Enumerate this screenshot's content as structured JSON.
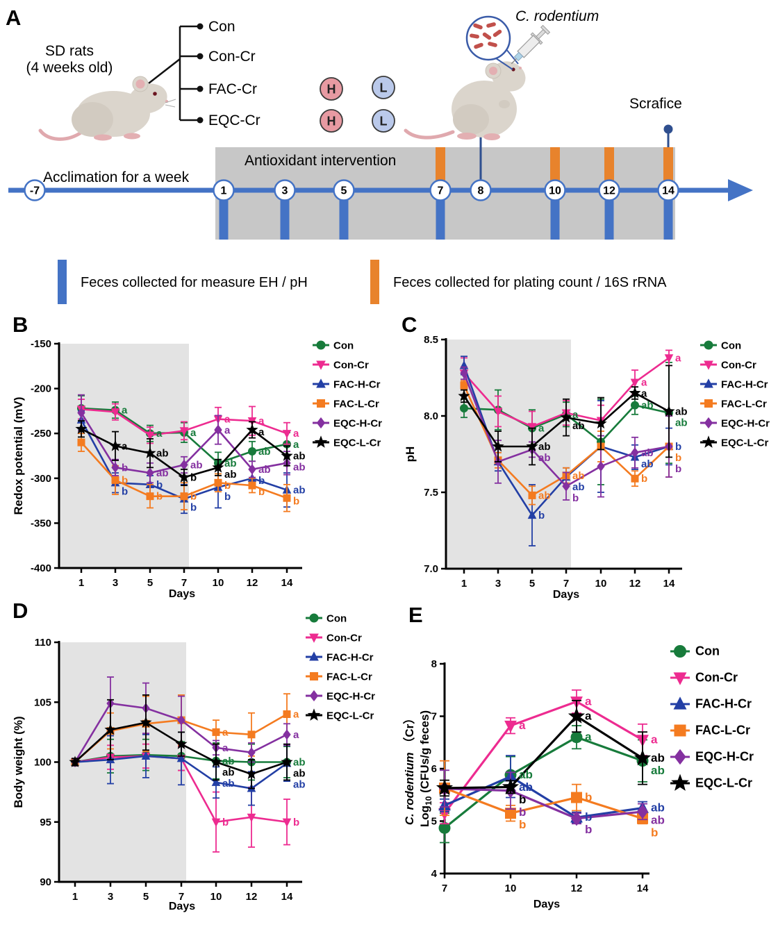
{
  "panelA": {
    "label": "A",
    "subject_line1": "SD rats",
    "subject_line2": "(4 weeks old)",
    "groups": [
      "Con",
      "Con-Cr",
      "FAC-Cr",
      "EQC-Cr"
    ],
    "dose_high": {
      "label": "H",
      "color": "#E79AA2"
    },
    "dose_low": {
      "label": "L",
      "color": "#BAC9EA"
    },
    "c_rodentium": "C. rodentium",
    "sacrifice": "Scrafice",
    "acclimation": "Acclimation for a week",
    "intervention": "Antioxidant intervention",
    "timeline_days": [
      "-7",
      "1",
      "3",
      "5",
      "7",
      "8",
      "10",
      "12",
      "14"
    ],
    "timeline_color": "#4473C5",
    "pin_color": "#2F4F8F",
    "orange_color": "#E8832C",
    "gray_box_color": "#C7C7C7",
    "legend": [
      {
        "color": "#4473C5",
        "text": "Feces collected for measure EH / pH"
      },
      {
        "color": "#E8832C",
        "text": "Feces collected for plating count / 16S rRNA"
      }
    ]
  },
  "chart_data": [
    {
      "id": "B",
      "panel_label": "B",
      "type": "line",
      "x": [
        1,
        3,
        5,
        7,
        10,
        12,
        14
      ],
      "xlabel": "Days",
      "ylabel": "Redox potential (mV)",
      "ylim": [
        -400,
        -150
      ],
      "yticks": [
        -150,
        -200,
        -250,
        -300,
        -350,
        -400
      ],
      "ydec": false,
      "shaded": true,
      "shade_color": "#E3E3E3",
      "legend_position": "right",
      "series": [
        {
          "name": "Con",
          "color": "#177B3B",
          "marker": "circle",
          "values": [
            -222,
            -224,
            -250,
            -249,
            -283,
            -270,
            -262
          ],
          "errors": [
            14,
            9,
            9,
            11,
            12,
            11,
            13
          ],
          "letters": [
            "",
            "a",
            "a",
            "a",
            "ab",
            "ab",
            "a"
          ]
        },
        {
          "name": "Con-Cr",
          "color": "#ED2B90",
          "marker": "triangle-down",
          "values": [
            -223,
            -226,
            -252,
            -247,
            -234,
            -236,
            -250
          ],
          "errors": [
            11,
            9,
            9,
            10,
            13,
            16,
            12
          ],
          "letters": [
            "",
            "",
            "",
            "",
            "a",
            "a",
            "a"
          ]
        },
        {
          "name": "FAC-H-Cr",
          "color": "#233FA5",
          "marker": "triangle-up",
          "values": [
            -235,
            -305,
            -307,
            -323,
            -310,
            -300,
            -313
          ],
          "errors": [
            10,
            11,
            10,
            16,
            23,
            10,
            19
          ],
          "letters": [
            "",
            "b",
            "b",
            "b",
            "b",
            "b",
            "ab"
          ]
        },
        {
          "name": "FAC-L-Cr",
          "color": "#F47B20",
          "marker": "square",
          "values": [
            -260,
            -302,
            -320,
            -320,
            -305,
            -308,
            -322
          ],
          "errors": [
            10,
            16,
            13,
            15,
            10,
            8,
            15
          ],
          "letters": [
            "",
            "b",
            "b",
            "b",
            "b",
            "b",
            "b"
          ]
        },
        {
          "name": "EQC-H-Cr",
          "color": "#8430A0",
          "marker": "diamond",
          "values": [
            -227,
            -288,
            -294,
            -285,
            -246,
            -290,
            -283
          ],
          "errors": [
            20,
            9,
            11,
            9,
            16,
            9,
            13
          ],
          "letters": [
            "",
            "b",
            "ab",
            "ab",
            "a",
            "ab",
            "ab"
          ]
        },
        {
          "name": "EQC-L-Cr",
          "color": "#000000",
          "marker": "star",
          "values": [
            -245,
            -264,
            -272,
            -299,
            -288,
            -246,
            -275
          ],
          "errors": [
            9,
            16,
            16,
            9,
            9,
            9,
            11
          ],
          "letters": [
            "",
            "a",
            "ab",
            "b",
            "ab",
            "a",
            "ab"
          ]
        }
      ]
    },
    {
      "id": "C",
      "panel_label": "C",
      "type": "line",
      "x": [
        1,
        3,
        5,
        7,
        10,
        12,
        14
      ],
      "xlabel": "Days",
      "ylabel": "pH",
      "ylim": [
        7.0,
        8.5
      ],
      "yticks": [
        8.5,
        8.0,
        7.5,
        7.0
      ],
      "ydec": true,
      "shaded": true,
      "shade_color": "#E3E3E3",
      "legend_position": "right",
      "series": [
        {
          "name": "Con",
          "color": "#177B3B",
          "marker": "circle",
          "values": [
            8.05,
            8.04,
            7.92,
            8.01,
            7.83,
            8.07,
            8.02
          ],
          "errors": [
            0.06,
            0.13,
            0.12,
            0.08,
            0.28,
            0.06,
            0.33
          ],
          "letters": [
            "",
            "",
            "a",
            "a",
            "",
            "ab",
            "ab"
          ]
        },
        {
          "name": "Con-Cr",
          "color": "#ED2B90",
          "marker": "triangle-down",
          "values": [
            8.28,
            8.03,
            7.93,
            8.02,
            7.97,
            8.22,
            8.38
          ],
          "errors": [
            0.1,
            0.1,
            0.1,
            0.08,
            0.1,
            0.08,
            0.05
          ],
          "letters": [
            "",
            "",
            "",
            "",
            "",
            "a",
            "a"
          ]
        },
        {
          "name": "FAC-H-Cr",
          "color": "#233FA5",
          "marker": "triangle-up",
          "values": [
            8.33,
            7.7,
            7.35,
            7.6,
            7.8,
            7.73,
            7.8
          ],
          "errors": [
            0.06,
            0.06,
            0.2,
            0.06,
            0.3,
            0.08,
            0.12
          ],
          "letters": [
            "",
            "",
            "b",
            "ab",
            "",
            "ab",
            "b"
          ]
        },
        {
          "name": "FAC-L-Cr",
          "color": "#F47B20",
          "marker": "square",
          "values": [
            8.2,
            7.71,
            7.48,
            7.61,
            7.8,
            7.59,
            7.8
          ],
          "errors": [
            0.03,
            0.05,
            0.06,
            0.05,
            0.1,
            0.05,
            0.2
          ],
          "letters": [
            "",
            "",
            "ab",
            "ab",
            "",
            "b",
            "b"
          ]
        },
        {
          "name": "EQC-H-Cr",
          "color": "#8430A0",
          "marker": "diamond",
          "values": [
            8.28,
            7.7,
            7.78,
            7.54,
            7.67,
            7.76,
            7.8
          ],
          "errors": [
            0.04,
            0.14,
            0.05,
            0.09,
            0.2,
            0.1,
            0.2
          ],
          "letters": [
            "",
            "",
            "ab",
            "b",
            "",
            "ab",
            "b"
          ]
        },
        {
          "name": "EQC-L-Cr",
          "color": "#000000",
          "marker": "star",
          "values": [
            8.13,
            7.8,
            7.8,
            7.99,
            7.95,
            8.15,
            8.03
          ],
          "errors": [
            0.04,
            0.1,
            0.12,
            0.12,
            0.17,
            0.04,
            0.3
          ],
          "letters": [
            "",
            "",
            "ab",
            "ab",
            "",
            "a",
            "ab"
          ]
        }
      ]
    },
    {
      "id": "D",
      "panel_label": "D",
      "type": "line",
      "x": [
        1,
        3,
        5,
        7,
        10,
        12,
        14
      ],
      "xlabel": "Days",
      "ylabel": "Body weight (%)",
      "ylim": [
        90,
        110
      ],
      "yticks": [
        110,
        105,
        100,
        95,
        90
      ],
      "ydec": false,
      "shaded": true,
      "shade_color": "#E3E3E3",
      "legend_position": "right",
      "series": [
        {
          "name": "Con",
          "color": "#177B3B",
          "marker": "circle",
          "values": [
            100,
            100.5,
            100.6,
            100.5,
            100.1,
            100.0,
            100.0
          ],
          "errors": [
            0.3,
            1.4,
            1.3,
            1.2,
            1.5,
            1.5,
            1.3
          ],
          "letters": [
            "",
            "",
            "",
            "",
            "ab",
            "",
            "ab"
          ]
        },
        {
          "name": "Con-Cr",
          "color": "#ED2B90",
          "marker": "triangle-down",
          "values": [
            100,
            100.4,
            100.5,
            100.3,
            95.0,
            95.4,
            95.0
          ],
          "errors": [
            0.3,
            1.0,
            1.0,
            1.0,
            2.5,
            2.5,
            1.9
          ],
          "letters": [
            "",
            "",
            "",
            "",
            "b",
            "",
            "b"
          ]
        },
        {
          "name": "FAC-H-Cr",
          "color": "#233FA5",
          "marker": "triangle-up",
          "values": [
            100,
            100.2,
            100.5,
            100.3,
            98.3,
            97.8,
            99.9
          ],
          "errors": [
            0.3,
            2.0,
            1.8,
            2.2,
            1.3,
            1.4,
            1.5
          ],
          "letters": [
            "",
            "",
            "",
            "",
            "ab",
            "",
            "ab"
          ]
        },
        {
          "name": "FAC-L-Cr",
          "color": "#F47B20",
          "marker": "square",
          "values": [
            100,
            102.6,
            103.2,
            103.5,
            102.5,
            102.3,
            104.0
          ],
          "errors": [
            0.3,
            1.5,
            2.3,
            2.1,
            1.0,
            1.8,
            1.7
          ],
          "letters": [
            "",
            "",
            "",
            "",
            "a",
            "",
            "a"
          ]
        },
        {
          "name": "EQC-H-Cr",
          "color": "#8430A0",
          "marker": "diamond",
          "values": [
            100,
            104.9,
            104.5,
            103.5,
            101.2,
            100.8,
            102.3
          ],
          "errors": [
            0.3,
            2.2,
            2.1,
            2.0,
            0.6,
            0.8,
            0.9
          ],
          "letters": [
            "",
            "",
            "",
            "",
            "a",
            "",
            "a"
          ]
        },
        {
          "name": "EQC-L-Cr",
          "color": "#000000",
          "marker": "star",
          "values": [
            100,
            102.7,
            103.3,
            101.5,
            100.0,
            99.0,
            100.0
          ],
          "errors": [
            0.3,
            2.5,
            2.3,
            1.0,
            1.5,
            1.2,
            1.5
          ],
          "letters": [
            "",
            "",
            "",
            "",
            "ab",
            "",
            "ab"
          ]
        }
      ]
    },
    {
      "id": "E",
      "panel_label": "E",
      "type": "line",
      "x": [
        7,
        10,
        12,
        14
      ],
      "xlabel": "Days",
      "ylabel_italic": "C. rodentium",
      "ylabel_suffix": " （Cr）",
      "ylabel2_prefix": "Log",
      "ylabel2_sub": "10",
      "ylabel2_rest": " (CFUs/g feces)",
      "ylim": [
        4,
        8
      ],
      "yticks": [
        8,
        7,
        6,
        5,
        4
      ],
      "ydec": false,
      "shaded": false,
      "legend_position": "right",
      "series": [
        {
          "name": "Con",
          "color": "#177B3B",
          "marker": "circle",
          "values": [
            4.87,
            5.88,
            6.6,
            6.15
          ],
          "errors": [
            0.28,
            0.35,
            0.22,
            0.4
          ],
          "letters": [
            "",
            "ab",
            "a",
            "ab"
          ]
        },
        {
          "name": "Con-Cr",
          "color": "#ED2B90",
          "marker": "triangle-down",
          "values": [
            5.15,
            6.82,
            7.28,
            6.55
          ],
          "errors": [
            0.2,
            0.15,
            0.22,
            0.3
          ],
          "letters": [
            "",
            "a",
            "a",
            "a"
          ]
        },
        {
          "name": "FAC-H-Cr",
          "color": "#233FA5",
          "marker": "triangle-up",
          "values": [
            5.3,
            5.85,
            5.07,
            5.25
          ],
          "errors": [
            0.12,
            0.4,
            0.1,
            0.12
          ],
          "letters": [
            "",
            "ab",
            "b",
            "ab"
          ]
        },
        {
          "name": "FAC-L-Cr",
          "color": "#F47B20",
          "marker": "square",
          "values": [
            5.63,
            5.15,
            5.45,
            5.05
          ],
          "errors": [
            0.52,
            0.15,
            0.25,
            0.1
          ],
          "letters": [
            "",
            "b",
            "b",
            "b"
          ]
        },
        {
          "name": "EQC-H-Cr",
          "color": "#8430A0",
          "marker": "diamond",
          "values": [
            5.62,
            5.58,
            5.05,
            5.18
          ],
          "errors": [
            0.35,
            0.35,
            0.1,
            0.15
          ],
          "letters": [
            "",
            "b",
            "b",
            "ab"
          ]
        },
        {
          "name": "EQC-L-Cr",
          "color": "#000000",
          "marker": "star",
          "values": [
            5.63,
            5.65,
            7.0,
            6.2
          ],
          "errors": [
            0.15,
            0.12,
            0.3,
            0.5
          ],
          "letters": [
            "",
            "b",
            "a",
            "ab"
          ]
        }
      ]
    }
  ]
}
